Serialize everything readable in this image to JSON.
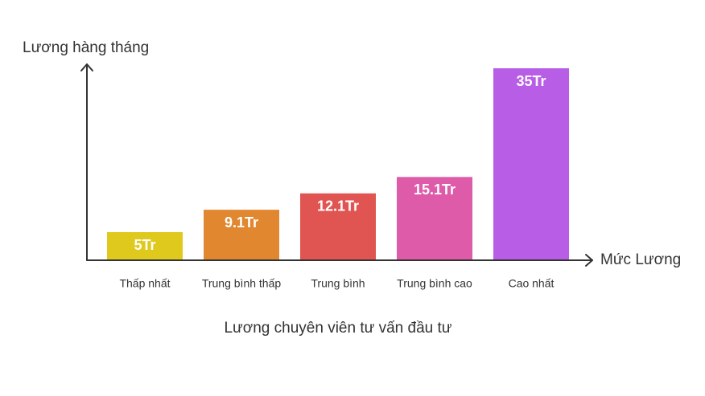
{
  "chart_data": {
    "type": "bar",
    "title": "Lương chuyên viên tư vấn đầu tư",
    "y_label": "Lương hàng tháng",
    "x_label": "Mức Lương",
    "categories": [
      "Thấp nhất",
      "Trung bình thấp",
      "Trung bình",
      "Trung bình cao",
      "Cao nhất"
    ],
    "values": [
      5,
      9.1,
      12.1,
      15.1,
      35
    ],
    "value_labels": [
      "5Tr",
      "9.1Tr",
      "12.1Tr",
      "15.1Tr",
      "35Tr"
    ],
    "colors": [
      "#dfc91c",
      "#e0872f",
      "#e05552",
      "#de5ba9",
      "#b85de6"
    ],
    "ylim": [
      0,
      35
    ]
  }
}
